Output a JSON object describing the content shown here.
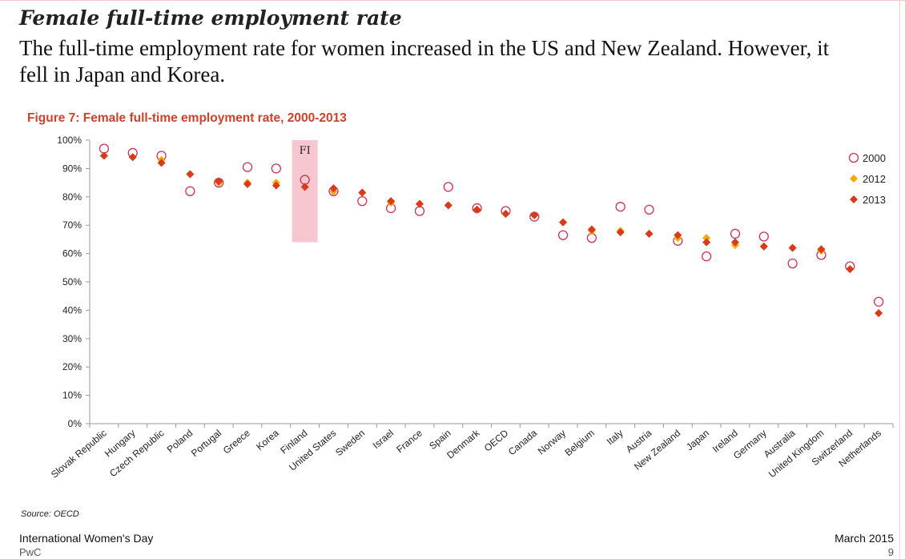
{
  "slide": {
    "headline": "Female full-time employment rate",
    "subtitle": "The full-time employment rate for women increased in the US and New Zealand. However, it fell in Japan and Korea.",
    "figure_title": "Figure 7: Female full-time employment rate, 2000-2013",
    "source": "Source: OECD",
    "footer_left": "International Women's Day",
    "footer_left_sub": "PwC",
    "footer_right": "March 2015",
    "page_number": "9"
  },
  "colors": {
    "series_2000": "#cc3355",
    "series_2012": "#f5a800",
    "series_2013": "#d9391c",
    "highlight": "#f6c7d0",
    "title": "#d0402a"
  },
  "chart_data": {
    "type": "scatter",
    "title": "Figure 7: Female full-time employment rate, 2000-2013",
    "xlabel": "",
    "ylabel": "",
    "ylim": [
      0,
      100
    ],
    "yticks": [
      "0%",
      "10%",
      "20%",
      "30%",
      "40%",
      "50%",
      "60%",
      "70%",
      "80%",
      "90%",
      "100%"
    ],
    "legend_position": "top-right",
    "grid": false,
    "highlight": {
      "category": "Finland",
      "label": "FI",
      "ymin": 64,
      "ymax": 100
    },
    "categories": [
      "Slovak Republic",
      "Hungary",
      "Czech Republic",
      "Poland",
      "Portugal",
      "Greece",
      "Korea",
      "Finland",
      "United States",
      "Sweden",
      "Israel",
      "France",
      "Spain",
      "Denmark",
      "OECD",
      "Canada",
      "Norway",
      "Belgium",
      "Italy",
      "Austria",
      "New Zealand",
      "Japan",
      "Ireland",
      "Germany",
      "Australia",
      "United Kingdom",
      "Switzerland",
      "Netherlands"
    ],
    "series": [
      {
        "name": "2000",
        "marker": "circle",
        "values": [
          97,
          95.5,
          94.5,
          82,
          85,
          90.5,
          90,
          86,
          82,
          78.5,
          76,
          75,
          83.5,
          76,
          75,
          73,
          66.5,
          65.5,
          76.5,
          75.5,
          64.5,
          59,
          67,
          66,
          56.5,
          59.5,
          55.5,
          43
        ]
      },
      {
        "name": "2012",
        "marker": "diamond",
        "values": [
          94.5,
          94,
          93,
          88,
          85,
          85,
          85,
          83.5,
          82,
          81.5,
          78,
          77.5,
          77,
          75.5,
          74,
          73.5,
          71,
          68,
          68,
          67,
          65.5,
          65.5,
          63,
          62.5,
          62,
          61,
          54.5,
          39
        ]
      },
      {
        "name": "2013",
        "marker": "diamond",
        "values": [
          94.5,
          94,
          92,
          88,
          85.5,
          84.5,
          84,
          83.5,
          83,
          81.5,
          78.5,
          77.5,
          77,
          75.5,
          74,
          73.5,
          71,
          68.5,
          67.5,
          67,
          66.5,
          64,
          64,
          62.5,
          62,
          61.5,
          54.5,
          39
        ]
      }
    ]
  }
}
